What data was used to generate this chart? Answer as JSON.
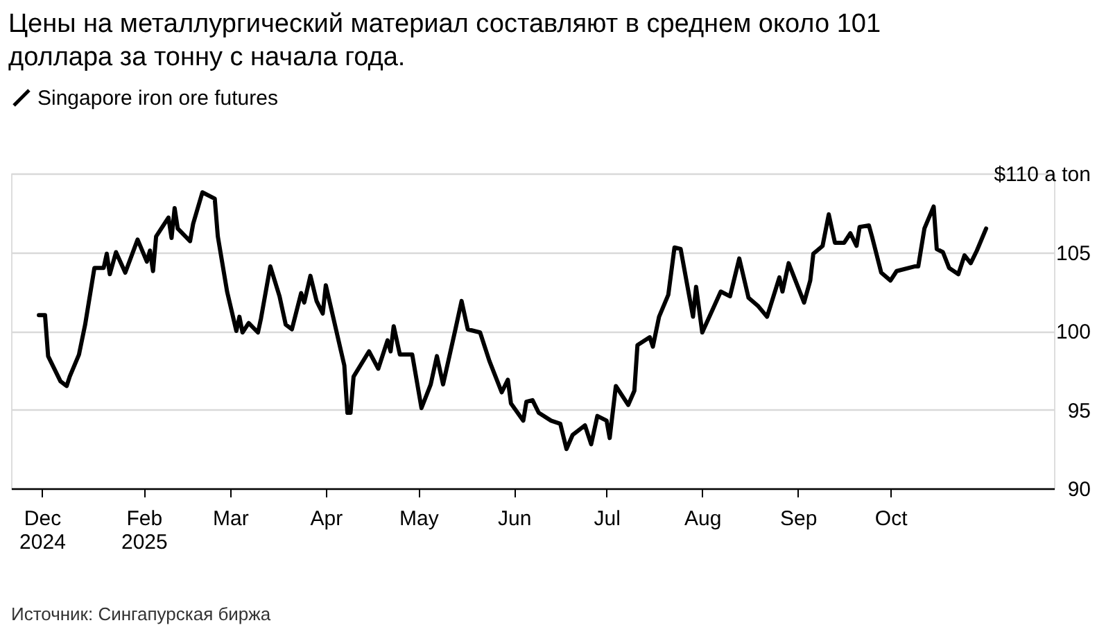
{
  "chart_data": {
    "type": "line",
    "title": "Цены на металлургический материал составляют в среднем около 101\nдоллара за тонну с начала года.",
    "annotations": [
      "Источник: Сингапурская биржа"
    ],
    "series": [
      {
        "name": "Singapore iron ore futures",
        "color": "#000000",
        "x": [
          "2024-12-29",
          "2024-12-31",
          "2025-01-01",
          "2025-01-05",
          "2025-01-07",
          "2025-01-08",
          "2025-01-11",
          "2025-01-13",
          "2025-01-16",
          "2025-01-19",
          "2025-01-20",
          "2025-01-21",
          "2025-01-23",
          "2025-01-26",
          "2025-01-30",
          "2025-02-02",
          "2025-02-03",
          "2025-02-04",
          "2025-02-05",
          "2025-02-09",
          "2025-02-10",
          "2025-02-11",
          "2025-02-12",
          "2025-02-16",
          "2025-02-17",
          "2025-02-20",
          "2025-02-24",
          "2025-02-25",
          "2025-02-28",
          "2025-03-03",
          "2025-03-04",
          "2025-03-05",
          "2025-03-07",
          "2025-03-10",
          "2025-03-11",
          "2025-03-14",
          "2025-03-17",
          "2025-03-19",
          "2025-03-21",
          "2025-03-24",
          "2025-03-25",
          "2025-03-27",
          "2025-03-29",
          "2025-03-31",
          "2025-04-01",
          "2025-04-07",
          "2025-04-08",
          "2025-04-09",
          "2025-04-10",
          "2025-04-15",
          "2025-04-18",
          "2025-04-21",
          "2025-04-22",
          "2025-04-23",
          "2025-04-25",
          "2025-04-29",
          "2025-05-02",
          "2025-05-05",
          "2025-05-07",
          "2025-05-09",
          "2025-05-13",
          "2025-05-15",
          "2025-05-17",
          "2025-05-21",
          "2025-05-24",
          "2025-05-28",
          "2025-05-30",
          "2025-05-31",
          "2025-06-04",
          "2025-06-05",
          "2025-06-07",
          "2025-06-09",
          "2025-06-13",
          "2025-06-16",
          "2025-06-18",
          "2025-06-20",
          "2025-06-24",
          "2025-06-26",
          "2025-06-28",
          "2025-07-01",
          "2025-07-02",
          "2025-07-04",
          "2025-07-08",
          "2025-07-10",
          "2025-07-11",
          "2025-07-15",
          "2025-07-16",
          "2025-07-18",
          "2025-07-21",
          "2025-07-23",
          "2025-07-25",
          "2025-07-29",
          "2025-07-30",
          "2025-08-01",
          "2025-08-07",
          "2025-08-10",
          "2025-08-13",
          "2025-08-16",
          "2025-08-19",
          "2025-08-22",
          "2025-08-26",
          "2025-08-27",
          "2025-08-29",
          "2025-09-03",
          "2025-09-05",
          "2025-09-06",
          "2025-09-09",
          "2025-09-11",
          "2025-09-13",
          "2025-09-16",
          "2025-09-18",
          "2025-09-20",
          "2025-09-21",
          "2025-09-24",
          "2025-09-25",
          "2025-09-28",
          "2025-10-01",
          "2025-10-03",
          "2025-10-09",
          "2025-10-10",
          "2025-10-12",
          "2025-10-15",
          "2025-10-16",
          "2025-10-18",
          "2025-10-20",
          "2025-10-23",
          "2025-10-25",
          "2025-10-27",
          "2025-10-29",
          "2025-11-01"
        ],
        "values": [
          101.0,
          101.0,
          98.4,
          96.8,
          96.5,
          97.1,
          98.5,
          100.4,
          104.0,
          104.0,
          104.9,
          103.6,
          105.0,
          103.7,
          105.8,
          104.4,
          105.1,
          103.8,
          106.0,
          107.2,
          105.9,
          107.8,
          106.5,
          105.7,
          106.8,
          108.8,
          108.4,
          106.0,
          102.5,
          100.0,
          100.9,
          99.9,
          100.5,
          99.9,
          100.8,
          104.1,
          102.2,
          100.4,
          100.1,
          102.4,
          101.8,
          103.5,
          101.9,
          101.1,
          102.9,
          97.8,
          94.8,
          94.8,
          97.1,
          98.7,
          97.6,
          99.4,
          98.7,
          100.3,
          98.5,
          98.5,
          95.1,
          96.6,
          98.4,
          96.6,
          100.1,
          101.9,
          100.1,
          99.9,
          98.1,
          96.1,
          96.9,
          95.4,
          94.3,
          95.5,
          95.6,
          94.8,
          94.3,
          94.1,
          92.5,
          93.4,
          94.0,
          92.8,
          94.6,
          94.3,
          93.2,
          96.5,
          95.3,
          96.2,
          99.1,
          99.6,
          99.0,
          100.9,
          102.3,
          105.3,
          105.2,
          100.9,
          102.8,
          99.9,
          102.5,
          102.2,
          104.6,
          102.1,
          101.6,
          100.9,
          103.4,
          102.5,
          104.3,
          101.8,
          103.2,
          104.9,
          105.4,
          107.4,
          105.6,
          105.6,
          106.2,
          105.4,
          106.6,
          106.7,
          106.0,
          103.7,
          103.2,
          103.8,
          104.1,
          104.1,
          106.5,
          107.9,
          105.2,
          105.0,
          104.0,
          103.6,
          104.8,
          104.3,
          105.1,
          106.5
        ]
      }
    ],
    "xlim": [
      "2024-12-20",
      "2025-11-23"
    ],
    "xticks": [
      {
        "value": "2024-12-30",
        "label": "Dec\n2024"
      },
      {
        "value": "2025-02-01",
        "label": "Feb\n2025"
      },
      {
        "value": "2025-03-01",
        "label": "Mar"
      },
      {
        "value": "2025-04-01",
        "label": "Apr"
      },
      {
        "value": "2025-05-01",
        "label": "May"
      },
      {
        "value": "2025-06-01",
        "label": "Jun"
      },
      {
        "value": "2025-07-01",
        "label": "Jul"
      },
      {
        "value": "2025-08-01",
        "label": "Aug"
      },
      {
        "value": "2025-09-01",
        "label": "Sep"
      },
      {
        "value": "2025-10-01",
        "label": "Oct"
      }
    ],
    "ylim": [
      90,
      110
    ],
    "yticks": [
      90,
      95,
      100,
      105,
      {
        "value": 110,
        "label": "$110 a ton"
      }
    ],
    "grid": "y",
    "legend": "top left",
    "line_style": "solid",
    "marker": "none"
  }
}
